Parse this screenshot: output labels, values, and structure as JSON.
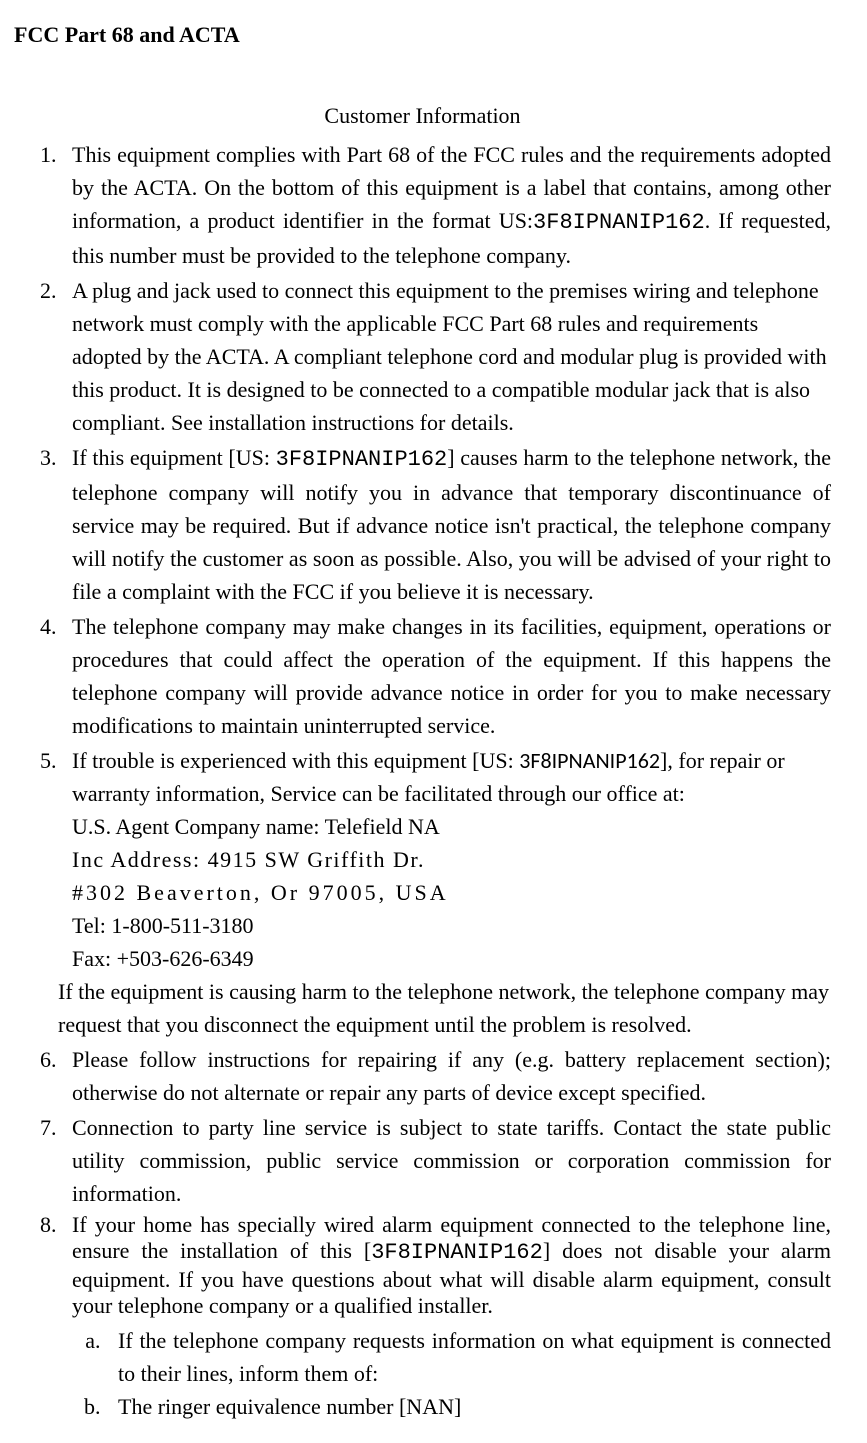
{
  "title": "FCC Part 68 and ACTA",
  "subtitle": "Customer Information",
  "productId": "3F8IPNANIP162",
  "items": {
    "i1a": "This equipment complies with Part 68 of the FCC rules and the requirements adopted by the ACTA. On the bottom of this equipment is a label that contains, among other information, a product identifier in the format US:",
    "i1b": ". If requested, this number must be provided to the telephone company.",
    "i2": "A plug and jack used to connect this equipment to the premises wiring and telephone network must comply with the applicable FCC Part 68 rules and requirements adopted by the ACTA. A compliant telephone cord and modular plug is provided with this product. It is designed to be connected to a compatible modular jack that is also compliant. See installation instructions for details.",
    "i3a": "If this equipment [US: ",
    "i3b": "] causes harm to the telephone network, the telephone company will notify you in advance that temporary discontinuance of service may be required. But if advance notice isn't practical, the telephone company will notify the customer as soon as possible. Also, you will be advised of your right to file a complaint with the FCC if you believe it is necessary.",
    "i4": "The telephone company may make changes in its facilities, equipment, operations or procedures that could affect the operation of the equipment. If this happens the telephone company will provide advance notice in order for you to make necessary modifications to maintain uninterrupted service.",
    "i5a": "If trouble is experienced with this equipment [US: ",
    "i5b": "], for repair or  warranty information, Service can be facilitated through our office at:",
    "agentLabel": "U.S. Agent Company name: Telefield NA",
    "incAddr1": "Inc Address: 4915 SW Griffith Dr.",
    "incAddr2": "#302 Beaverton, Or 97005, USA",
    "tel": "Tel: 1-800-511-3180",
    "fax": "Fax: +503-626-6349",
    "i5tail": "If the equipment is causing harm to the telephone network, the telephone company may request that you disconnect the equipment until the problem is resolved.",
    "i6": "Please follow instructions for repairing if any (e.g. battery replacement section); otherwise do not alternate or repair any parts of device except specified.",
    "i7": "Connection to party line service is subject to state tariffs. Contact the state public utility commission, public service commission or corporation commission for information.",
    "i8a": "If your home has specially wired alarm equipment connected to the telephone line, ensure the installation of this [",
    "i8b": "] does not disable your alarm equipment.  If you have questions about what will disable alarm equipment, consult your telephone company or a qualified installer.",
    "sub_a": "If the telephone company requests information on what equipment is connected to their lines, inform them of:",
    "sub_b": "The ringer equivalence number [NAN]"
  }
}
